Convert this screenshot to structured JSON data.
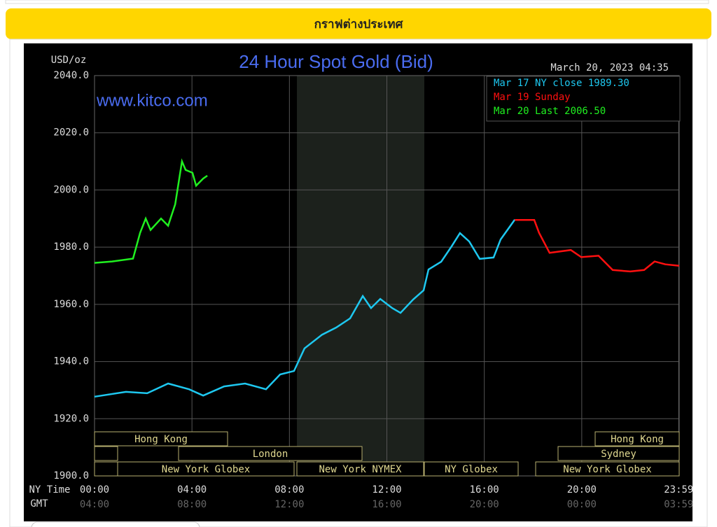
{
  "header": {
    "title": "กราฟต่างประเทศ"
  },
  "chart_data": {
    "type": "line",
    "title": "24 Hour Spot Gold (Bid)",
    "unit_label": "USD/oz",
    "timestamp": "March 20, 2023 04:35",
    "watermark": "www.kitco.com",
    "x_axis_label": "NY Time",
    "x2_axis_label": "GMT",
    "xlim": [
      0,
      24
    ],
    "ylim": [
      1900,
      2040
    ],
    "xticks": [
      {
        "value": 0,
        "label": "00:00"
      },
      {
        "value": 4,
        "label": "04:00"
      },
      {
        "value": 8,
        "label": "08:00"
      },
      {
        "value": 12,
        "label": "12:00"
      },
      {
        "value": 16,
        "label": "16:00"
      },
      {
        "value": 20,
        "label": "20:00"
      },
      {
        "value": 23.98,
        "label": "23:59"
      }
    ],
    "x2_tick_labels": [
      "04:00",
      "08:00",
      "12:00",
      "16:00",
      "20:00",
      "00:00",
      "03:59"
    ],
    "yticks": [
      {
        "value": 1900,
        "label": "1900.0"
      },
      {
        "value": 1920,
        "label": "1920.0"
      },
      {
        "value": 1940,
        "label": "1940.0"
      },
      {
        "value": 1960,
        "label": "1960.0"
      },
      {
        "value": 1980,
        "label": "1980.0"
      },
      {
        "value": 2000,
        "label": "2000.0"
      },
      {
        "value": 2020,
        "label": "2020.0"
      },
      {
        "value": 2040,
        "label": "2040.0"
      }
    ],
    "grid": true,
    "sessions": [
      "Hong Kong",
      "London",
      "New York Globex",
      "New York NYMEX",
      "NY Globex",
      "Hong Kong",
      "Sydney",
      "New York Globex"
    ],
    "series": [
      {
        "name": "Mar 17 NY close 1989.30",
        "color": "#1ec8f0",
        "x": [
          0,
          1.29,
          2.16,
          3.02,
          3.88,
          4.46,
          5.32,
          6.18,
          7.04,
          7.62,
          8.19,
          8.62,
          9.34,
          9.92,
          10.49,
          11.01,
          11.35,
          11.73,
          12.22,
          12.56,
          13.08,
          13.51,
          13.71,
          14.23,
          14.66,
          15.0,
          15.38,
          15.81,
          16.38,
          16.67,
          17.25
        ],
        "values": [
          1927.7,
          1929.4,
          1928.9,
          1932.3,
          1930.3,
          1928.1,
          1931.3,
          1932.3,
          1930.3,
          1935.5,
          1936.7,
          1944.6,
          1949.4,
          1951.9,
          1955.1,
          1962.9,
          1958.7,
          1961.9,
          1958.7,
          1957.0,
          1961.7,
          1964.9,
          1972.2,
          1974.9,
          1980.3,
          1984.9,
          1982.0,
          1975.9,
          1976.4,
          1982.7,
          1989.6
        ]
      },
      {
        "name": "Mar 19 Sunday",
        "color": "#ff1010",
        "x": [
          17.25,
          18.05,
          18.25,
          18.68,
          19.55,
          19.98,
          20.69,
          21.27,
          21.99,
          22.56,
          22.99,
          23.43,
          24.0
        ],
        "values": [
          1989.5,
          1989.5,
          1985,
          1978,
          1979,
          1976.5,
          1977,
          1972,
          1971.5,
          1972,
          1975,
          1974,
          1973.5
        ]
      },
      {
        "name": "Mar 20 Last 2006.50",
        "color": "#20f020",
        "x": [
          0,
          0.72,
          1.58,
          1.87,
          2.1,
          2.3,
          2.73,
          3.02,
          3.31,
          3.59,
          3.74,
          4.02,
          4.17,
          4.46,
          4.63
        ],
        "values": [
          1974.5,
          1975,
          1976,
          1985,
          1990,
          1986,
          1990,
          1987.5,
          1995,
          2010,
          2007,
          2006,
          2001.5,
          2004,
          2005
        ]
      }
    ]
  }
}
